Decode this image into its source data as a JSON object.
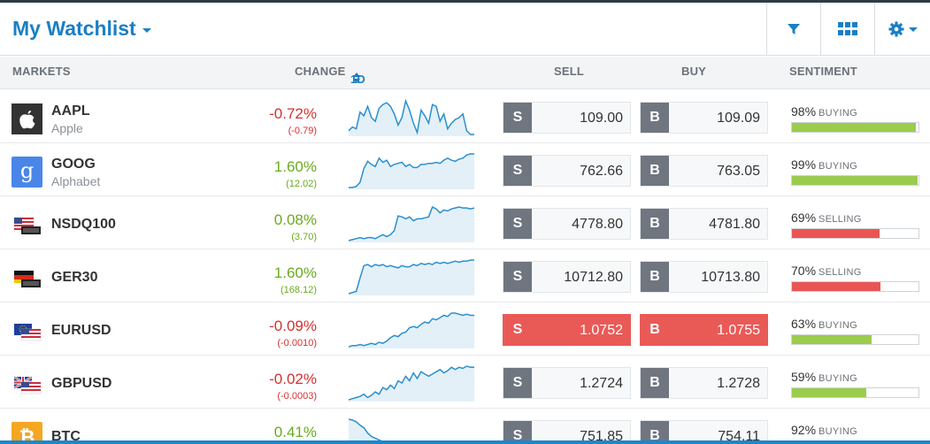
{
  "header": {
    "title": "My Watchlist",
    "buttons": [
      "filter-icon",
      "grid-view-icon",
      "gear-icon"
    ]
  },
  "columns": {
    "markets": "MARKETS",
    "change": "CHANGE",
    "period": "1D",
    "sell": "SELL",
    "buy": "BUY",
    "sentiment": "SENTIMENT"
  },
  "colors": {
    "accent": "#1b7fc4",
    "negative": "#d62f2f",
    "positive": "#6aaa1f",
    "buying_bar": "#9bcc4d",
    "selling_bar": "#ea5553",
    "active_price": "#e95a57"
  },
  "rows": [
    {
      "symbol": "AAPL",
      "name": "Apple",
      "logo": "apple-logo",
      "change_pct": "-0.72%",
      "change_abs": "(-0.79)",
      "direction": "neg",
      "sell_tag": "S",
      "sell": "109.00",
      "buy_tag": "B",
      "buy": "109.09",
      "sentiment_pct": "98%",
      "sentiment_word": "BUYING",
      "sentiment_value": 98,
      "spark": [
        5,
        7,
        6,
        15,
        13,
        18,
        12,
        10,
        17,
        19,
        20,
        18,
        14,
        8,
        12,
        21,
        16,
        9,
        4,
        16,
        13,
        9,
        19,
        18,
        10,
        14,
        6,
        9,
        11,
        12,
        14,
        5,
        3,
        3
      ]
    },
    {
      "symbol": "GOOG",
      "name": "Alphabet",
      "logo": "google-logo",
      "change_pct": "1.60%",
      "change_abs": "(12.02)",
      "direction": "pos",
      "sell_tag": "S",
      "sell": "762.66",
      "buy_tag": "B",
      "buy": "763.05",
      "sentiment_pct": "99%",
      "sentiment_word": "BUYING",
      "sentiment_value": 99,
      "spark": [
        0,
        0,
        1,
        5,
        18,
        25,
        22,
        20,
        28,
        24,
        26,
        20,
        22,
        23,
        24,
        20,
        22,
        19,
        19,
        22,
        22,
        23,
        23,
        24,
        23,
        26,
        28,
        26,
        25,
        27,
        28,
        31,
        32,
        32
      ]
    },
    {
      "symbol": "NSDQ100",
      "name": "",
      "logo": "us-flag",
      "change_pct": "0.08%",
      "change_abs": "(3.70)",
      "direction": "pos",
      "sell_tag": "S",
      "sell": "4778.80",
      "buy_tag": "B",
      "buy": "4781.80",
      "sentiment_pct": "69%",
      "sentiment_word": "SELLING",
      "sentiment_value": 69,
      "spark": [
        0,
        1,
        2,
        3,
        2,
        3,
        3,
        2,
        4,
        6,
        4,
        6,
        10,
        25,
        24,
        22,
        24,
        20,
        22,
        22,
        23,
        24,
        34,
        32,
        28,
        31,
        30,
        32,
        33,
        34,
        33,
        33,
        32,
        33
      ]
    },
    {
      "symbol": "GER30",
      "name": "",
      "logo": "germany-flag",
      "change_pct": "1.60%",
      "change_abs": "(168.12)",
      "direction": "pos",
      "sell_tag": "S",
      "sell": "10712.80",
      "buy_tag": "B",
      "buy": "10713.80",
      "sentiment_pct": "70%",
      "sentiment_word": "SELLING",
      "sentiment_value": 70,
      "spark": [
        0,
        1,
        2,
        14,
        25,
        26,
        24,
        26,
        25,
        26,
        24,
        25,
        24,
        23,
        25,
        24,
        24,
        26,
        25,
        27,
        26,
        27,
        26,
        28,
        27,
        28,
        27,
        28,
        29,
        28,
        29,
        29,
        30,
        30
      ]
    },
    {
      "symbol": "EURUSD",
      "name": "",
      "logo": "eu-us-flag",
      "change_pct": "-0.09%",
      "change_abs": "(-0.0010)",
      "direction": "neg",
      "sell_tag": "S",
      "sell": "1.0752",
      "buy_tag": "B",
      "buy": "1.0755",
      "sentiment_pct": "63%",
      "sentiment_word": "BUYING",
      "sentiment_value": 63,
      "active": true,
      "spark": [
        0,
        1,
        1,
        2,
        1,
        2,
        3,
        2,
        4,
        3,
        5,
        8,
        10,
        9,
        12,
        13,
        17,
        18,
        17,
        20,
        22,
        21,
        25,
        24,
        26,
        28,
        27,
        30,
        30,
        29,
        28,
        29,
        28,
        28
      ]
    },
    {
      "symbol": "GBPUSD",
      "name": "",
      "logo": "uk-us-flag",
      "change_pct": "-0.02%",
      "change_abs": "(-0.0003)",
      "direction": "neg",
      "sell_tag": "S",
      "sell": "1.2724",
      "buy_tag": "B",
      "buy": "1.2728",
      "sentiment_pct": "59%",
      "sentiment_word": "BUYING",
      "sentiment_value": 59,
      "spark": [
        1,
        2,
        3,
        4,
        6,
        3,
        5,
        8,
        6,
        12,
        10,
        14,
        11,
        18,
        16,
        22,
        18,
        25,
        20,
        26,
        24,
        22,
        24,
        26,
        28,
        25,
        27,
        30,
        28,
        30,
        29,
        31,
        30,
        30
      ]
    },
    {
      "symbol": "BTC",
      "name": "",
      "logo": "bitcoin-logo",
      "change_pct": "0.41%",
      "change_abs": "",
      "direction": "pos",
      "sell_tag": "S",
      "sell": "751.85",
      "buy_tag": "B",
      "buy": "754.11",
      "sentiment_pct": "92%",
      "sentiment_word": "BUYING",
      "sentiment_value": 92,
      "spark": [
        40,
        39,
        37,
        33,
        30,
        24,
        20,
        18,
        16,
        14,
        12,
        11,
        10,
        9,
        8,
        8,
        7,
        6,
        6,
        5,
        5,
        4,
        4,
        4,
        3,
        3,
        2,
        2,
        2,
        1,
        2,
        1,
        1,
        1
      ]
    }
  ]
}
